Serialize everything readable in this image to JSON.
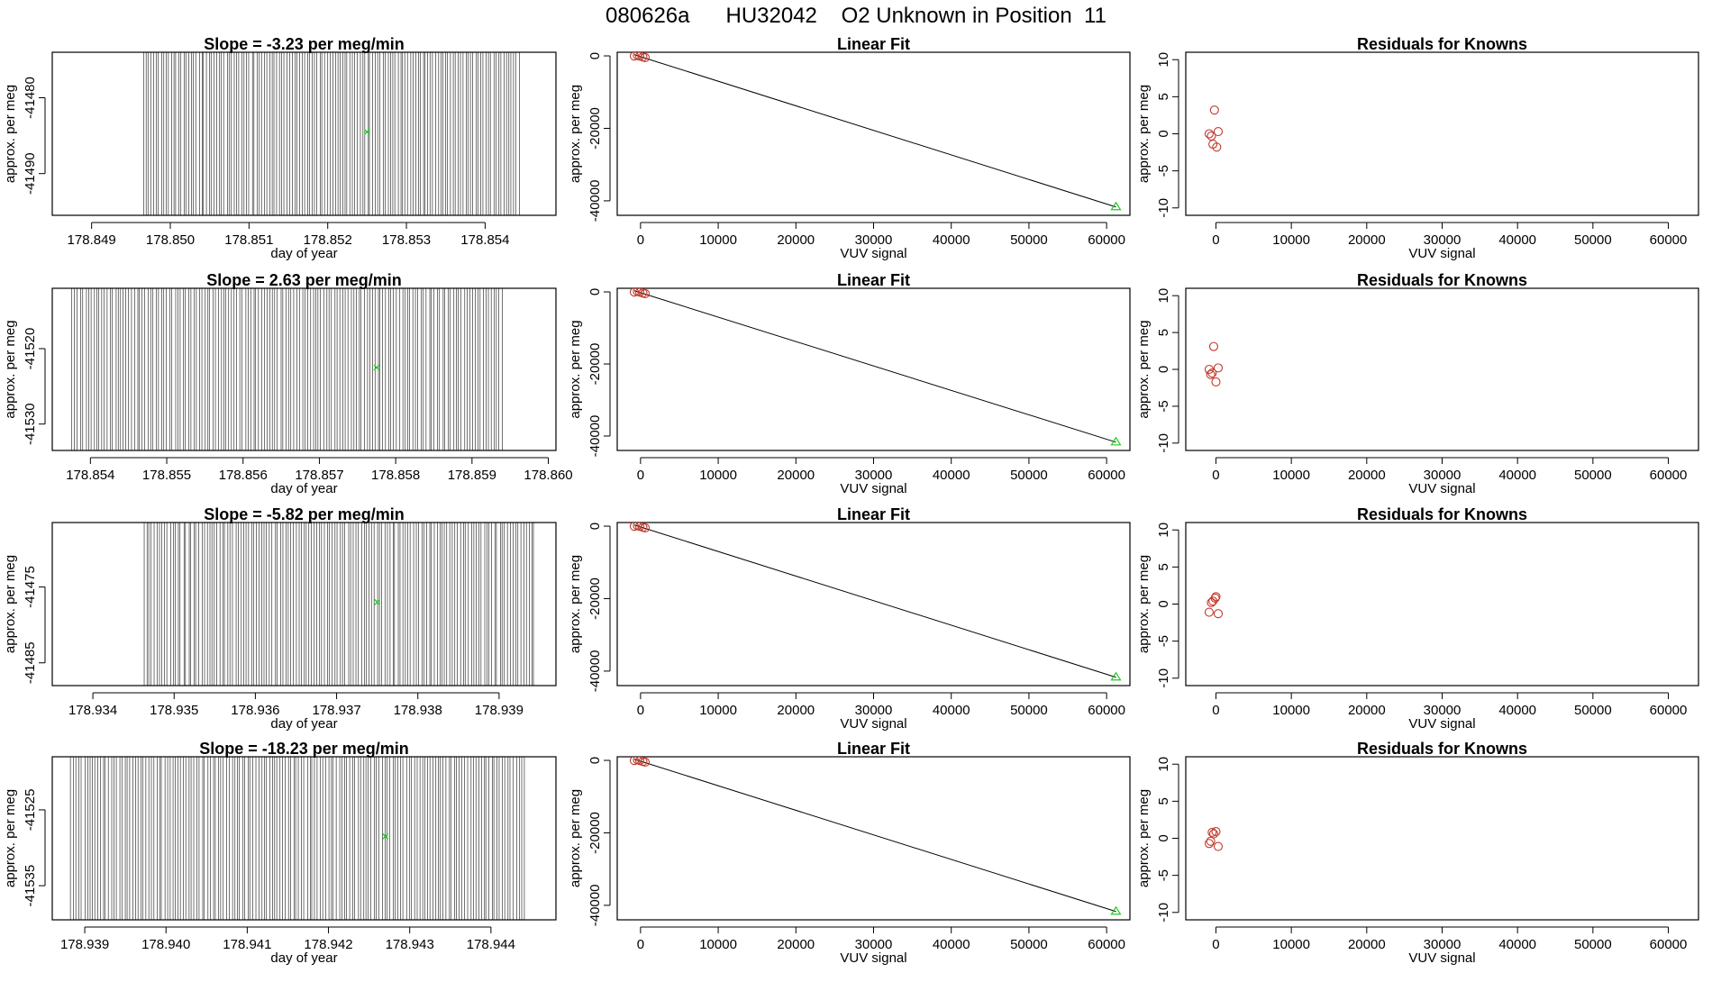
{
  "figure": {
    "title": "080626a      HU32042    O2 Unknown in Position  11"
  },
  "colors": {
    "axis": "#000000",
    "timeline_line": "#000000",
    "fit_line": "#000000",
    "known_points": "#c0392b",
    "unknown_point": "#22cc22"
  },
  "chart_data": [
    {
      "type": "line",
      "panel": "timeline",
      "title": "Slope =  -3.23  per meg/min",
      "xlabel": "day of year",
      "ylabel": "approx. per meg",
      "xlim": [
        178.8485,
        178.8549
      ],
      "ylim": [
        -41495.5,
        -41474
      ],
      "xticks": [
        178.849,
        178.85,
        178.851,
        178.852,
        178.853,
        178.854
      ],
      "xtick_labels": [
        "178.849",
        "178.850",
        "178.851",
        "178.852",
        "178.853",
        "178.854"
      ],
      "yticks": [
        -41480,
        -41490
      ],
      "ytick_labels": [
        "-41480",
        "-41490"
      ],
      "vline_span": [
        178.84965,
        178.85445
      ],
      "vline_count": 150,
      "vline_y": [
        -41495.5,
        -41474
      ],
      "unknown_point": {
        "x": 178.8525,
        "y": -41484.5
      }
    },
    {
      "type": "scatter",
      "panel": "fit",
      "title": "Linear Fit",
      "xlabel": "VUV signal",
      "ylabel": "approx. per meg",
      "xlim": [
        -3000,
        63000
      ],
      "ylim": [
        -44000,
        1000
      ],
      "xticks": [
        0,
        10000,
        20000,
        30000,
        40000,
        50000,
        60000
      ],
      "xtick_labels": [
        "0",
        "10000",
        "20000",
        "30000",
        "40000",
        "50000",
        "60000"
      ],
      "yticks": [
        0,
        -20000,
        -40000
      ],
      "ytick_labels": [
        "0",
        "-20000",
        "-40000"
      ],
      "knowns_x": [
        -800,
        -400,
        -100,
        300,
        600
      ],
      "knowns_y": [
        -50,
        150,
        -80,
        -300,
        -480
      ],
      "fit_line": {
        "x": [
          -800,
          61200
        ],
        "y": [
          320,
          -41700
        ]
      },
      "unknown_point": {
        "x": 61200,
        "y": -41700
      }
    },
    {
      "type": "scatter",
      "panel": "residuals",
      "title": "Residuals for Knowns",
      "xlabel": "VUV signal",
      "ylabel": "approx. per meg",
      "xlim": [
        -4000,
        64000
      ],
      "ylim": [
        -11,
        11
      ],
      "xticks": [
        0,
        10000,
        20000,
        30000,
        40000,
        50000,
        60000
      ],
      "xtick_labels": [
        "0",
        "10000",
        "20000",
        "30000",
        "40000",
        "50000",
        "60000"
      ],
      "yticks": [
        10,
        5,
        0,
        -5,
        -10
      ],
      "ytick_labels": [
        "10",
        "5",
        "0",
        "-5",
        "-10"
      ],
      "knowns_x": [
        -900,
        -600,
        -400,
        -200,
        100,
        300
      ],
      "knowns_y": [
        0,
        -0.3,
        -1.4,
        3.2,
        -1.8,
        0.3
      ]
    },
    {
      "type": "line",
      "panel": "timeline",
      "title": "Slope =  2.63  per meg/min",
      "xlabel": "day of year",
      "ylabel": "approx. per meg",
      "xlim": [
        178.8535,
        178.8601
      ],
      "ylim": [
        -41533.5,
        -41512
      ],
      "xticks": [
        178.854,
        178.855,
        178.856,
        178.857,
        178.858,
        178.859,
        178.86
      ],
      "xtick_labels": [
        "178.854",
        "178.855",
        "178.856",
        "178.857",
        "178.858",
        "178.859",
        "178.860"
      ],
      "yticks": [
        -41520,
        -41530
      ],
      "ytick_labels": [
        "-41520",
        "-41530"
      ],
      "vline_span": [
        178.85375,
        178.85942
      ],
      "vline_count": 160,
      "vline_y": [
        -41533.5,
        -41512
      ],
      "unknown_point": {
        "x": 178.85775,
        "y": -41522.5
      }
    },
    {
      "type": "scatter",
      "panel": "fit",
      "title": "Linear Fit",
      "xlabel": "VUV signal",
      "ylabel": "approx. per meg",
      "xlim": [
        -3000,
        63000
      ],
      "ylim": [
        -44000,
        1000
      ],
      "xticks": [
        0,
        10000,
        20000,
        30000,
        40000,
        50000,
        60000
      ],
      "xtick_labels": [
        "0",
        "10000",
        "20000",
        "30000",
        "40000",
        "50000",
        "60000"
      ],
      "yticks": [
        0,
        -20000,
        -40000
      ],
      "ytick_labels": [
        "0",
        "-20000",
        "-40000"
      ],
      "knowns_x": [
        -800,
        -400,
        -100,
        300,
        600
      ],
      "knowns_y": [
        -50,
        150,
        -80,
        -300,
        -480
      ],
      "fit_line": {
        "x": [
          -800,
          61200
        ],
        "y": [
          320,
          -41700
        ]
      },
      "unknown_point": {
        "x": 61200,
        "y": -41700
      }
    },
    {
      "type": "scatter",
      "panel": "residuals",
      "title": "Residuals for Knowns",
      "xlabel": "VUV signal",
      "ylabel": "approx. per meg",
      "xlim": [
        -4000,
        64000
      ],
      "ylim": [
        -11,
        11
      ],
      "xticks": [
        0,
        10000,
        20000,
        30000,
        40000,
        50000,
        60000
      ],
      "xtick_labels": [
        "0",
        "10000",
        "20000",
        "30000",
        "40000",
        "50000",
        "60000"
      ],
      "yticks": [
        10,
        5,
        0,
        -5,
        -10
      ],
      "ytick_labels": [
        "10",
        "5",
        "0",
        "-5",
        "-10"
      ],
      "knowns_x": [
        -900,
        -700,
        -500,
        -300,
        0,
        300
      ],
      "knowns_y": [
        0,
        -0.7,
        -0.5,
        3.1,
        -1.7,
        0.2
      ]
    },
    {
      "type": "line",
      "panel": "timeline",
      "title": "Slope =  -5.82  per meg/min",
      "xlabel": "day of year",
      "ylabel": "approx. per meg",
      "xlim": [
        178.9335,
        178.9397
      ],
      "ylim": [
        -41488,
        -41466.5
      ],
      "xticks": [
        178.934,
        178.935,
        178.936,
        178.937,
        178.938,
        178.939
      ],
      "xtick_labels": [
        "178.934",
        "178.935",
        "178.936",
        "178.937",
        "178.938",
        "178.939"
      ],
      "yticks": [
        -41475,
        -41485
      ],
      "ytick_labels": [
        "-41475",
        "-41485"
      ],
      "vline_span": [
        178.93462,
        178.93945
      ],
      "vline_count": 150,
      "vline_y": [
        -41488,
        -41466.5
      ],
      "unknown_point": {
        "x": 178.9375,
        "y": -41477
      }
    },
    {
      "type": "scatter",
      "panel": "fit",
      "title": "Linear Fit",
      "xlabel": "VUV signal",
      "ylabel": "approx. per meg",
      "xlim": [
        -3000,
        63000
      ],
      "ylim": [
        -44000,
        1000
      ],
      "xticks": [
        0,
        10000,
        20000,
        30000,
        40000,
        50000,
        60000
      ],
      "xtick_labels": [
        "0",
        "10000",
        "20000",
        "30000",
        "40000",
        "50000",
        "60000"
      ],
      "yticks": [
        0,
        -20000,
        -40000
      ],
      "ytick_labels": [
        "0",
        "-20000",
        "-40000"
      ],
      "knowns_x": [
        -800,
        -400,
        -100,
        300,
        600
      ],
      "knowns_y": [
        -50,
        150,
        -80,
        -300,
        -480
      ],
      "fit_line": {
        "x": [
          -800,
          61200
        ],
        "y": [
          320,
          -41700
        ]
      },
      "unknown_point": {
        "x": 61200,
        "y": -41700
      }
    },
    {
      "type": "scatter",
      "panel": "residuals",
      "title": "Residuals for Knowns",
      "xlabel": "VUV signal",
      "ylabel": "approx. per meg",
      "xlim": [
        -4000,
        64000
      ],
      "ylim": [
        -11,
        11
      ],
      "xticks": [
        0,
        10000,
        20000,
        30000,
        40000,
        50000,
        60000
      ],
      "xtick_labels": [
        "0",
        "10000",
        "20000",
        "30000",
        "40000",
        "50000",
        "60000"
      ],
      "yticks": [
        10,
        5,
        0,
        -5,
        -10
      ],
      "ytick_labels": [
        "10",
        "5",
        "0",
        "-5",
        "-10"
      ],
      "knowns_x": [
        -900,
        -600,
        -400,
        -100,
        0,
        300
      ],
      "knowns_y": [
        -1.1,
        0.2,
        0.4,
        0.8,
        1.0,
        -1.3
      ]
    },
    {
      "type": "line",
      "panel": "timeline",
      "title": "Slope =  -18.23  per meg/min",
      "xlabel": "day of year",
      "ylabel": "approx. per meg",
      "xlim": [
        178.9386,
        178.9448
      ],
      "ylim": [
        -41539.5,
        -41518
      ],
      "xticks": [
        178.939,
        178.94,
        178.941,
        178.942,
        178.943,
        178.944
      ],
      "xtick_labels": [
        "178.939",
        "178.940",
        "178.941",
        "178.942",
        "178.943",
        "178.944"
      ],
      "yticks": [
        -41525,
        -41535
      ],
      "ytick_labels": [
        "-41525",
        "-41535"
      ],
      "vline_span": [
        178.93882,
        178.94443
      ],
      "vline_count": 170,
      "vline_y": [
        -41539.5,
        -41518
      ],
      "unknown_point": {
        "x": 178.9427,
        "y": -41528.5
      }
    },
    {
      "type": "scatter",
      "panel": "fit",
      "title": "Linear Fit",
      "xlabel": "VUV signal",
      "ylabel": "approx. per meg",
      "xlim": [
        -3000,
        63000
      ],
      "ylim": [
        -44000,
        1000
      ],
      "xticks": [
        0,
        10000,
        20000,
        30000,
        40000,
        50000,
        60000
      ],
      "xtick_labels": [
        "0",
        "10000",
        "20000",
        "30000",
        "40000",
        "50000",
        "60000"
      ],
      "yticks": [
        0,
        -20000,
        -40000
      ],
      "ytick_labels": [
        "0",
        "-20000",
        "-40000"
      ],
      "knowns_x": [
        -800,
        -400,
        -100,
        300,
        600
      ],
      "knowns_y": [
        -50,
        150,
        -80,
        -300,
        -480
      ],
      "fit_line": {
        "x": [
          -800,
          61200
        ],
        "y": [
          320,
          -41700
        ]
      },
      "unknown_point": {
        "x": 61200,
        "y": -41700
      }
    },
    {
      "type": "scatter",
      "panel": "residuals",
      "title": "Residuals for Knowns",
      "xlabel": "VUV signal",
      "ylabel": "approx. per meg",
      "xlim": [
        -4000,
        64000
      ],
      "ylim": [
        -11,
        11
      ],
      "xticks": [
        0,
        10000,
        20000,
        30000,
        40000,
        50000,
        60000
      ],
      "xtick_labels": [
        "0",
        "10000",
        "20000",
        "30000",
        "40000",
        "50000",
        "60000"
      ],
      "yticks": [
        10,
        5,
        0,
        -5,
        -10
      ],
      "ytick_labels": [
        "10",
        "5",
        "0",
        "-5",
        "-10"
      ],
      "knowns_x": [
        -900,
        -700,
        -500,
        -300,
        0,
        300
      ],
      "knowns_y": [
        -0.7,
        -0.4,
        0.8,
        0.6,
        0.9,
        -1.1
      ]
    }
  ]
}
